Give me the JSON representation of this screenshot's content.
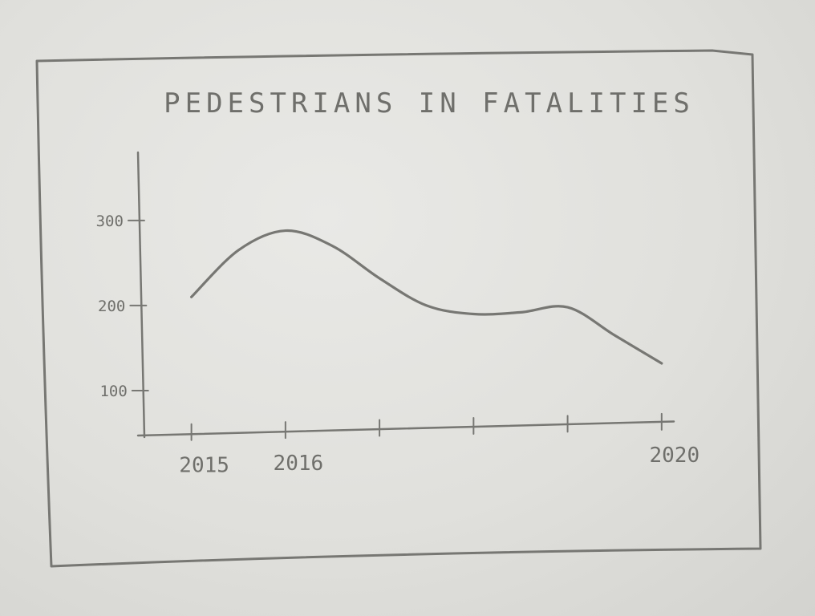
{
  "chart_data": {
    "type": "line",
    "title": "PEDESTRIANS IN FATALITIES",
    "xlabel": "",
    "ylabel": "",
    "x": [
      2015,
      2015.5,
      2016,
      2016.5,
      2017,
      2017.5,
      2018,
      2018.5,
      2019,
      2019.5,
      2020
    ],
    "series": [
      {
        "values": [
          210,
          265,
          288,
          270,
          232,
          200,
          190,
          192,
          198,
          165,
          132
        ]
      }
    ],
    "x_ticks": [
      2015,
      2016,
      2017,
      2018,
      2019,
      2020
    ],
    "x_tick_labels": [
      "2015",
      "2016",
      "",
      "",
      "",
      "2020"
    ],
    "y_ticks": [
      100,
      200,
      300
    ],
    "y_tick_labels": [
      "100",
      "200",
      "300"
    ],
    "xlim": [
      2014.5,
      2020.3
    ],
    "ylim": [
      50,
      380
    ],
    "grid": false,
    "legend": "none"
  }
}
